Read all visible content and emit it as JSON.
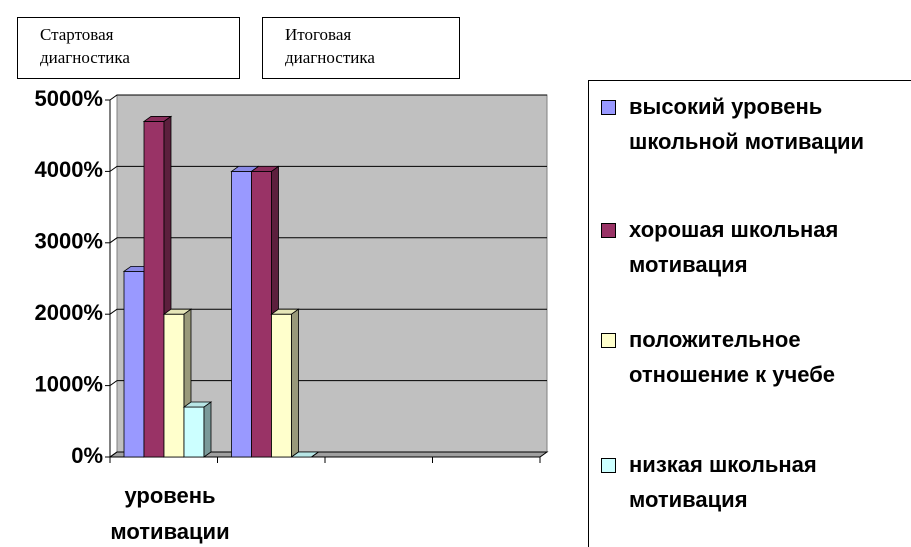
{
  "chart_data": {
    "type": "bar3d",
    "annotations": [
      "Стартовая диагностика",
      "Итоговая диагностика"
    ],
    "categories": [
      "уровень мотивации",
      null,
      null,
      null
    ],
    "series": [
      {
        "name": "высокий уровень школьной мотивации",
        "color": "#9999ff",
        "values": [
          2600,
          4000,
          null,
          null
        ]
      },
      {
        "name": "хорошая школьная мотивация",
        "color": "#993366",
        "values": [
          4700,
          4000,
          null,
          null
        ]
      },
      {
        "name": "положительное отношение к учебе",
        "color": "#ffffcc",
        "values": [
          2000,
          2000,
          null,
          null
        ]
      },
      {
        "name": "низкая школьная мотивация",
        "color": "#ccffff",
        "values": [
          700,
          0,
          null,
          null
        ]
      }
    ],
    "ylim": [
      0,
      5000
    ],
    "yticks": [
      {
        "value": 0,
        "label": "0%"
      },
      {
        "value": 1000,
        "label": "1000%"
      },
      {
        "value": 2000,
        "label": "2000%"
      },
      {
        "value": 3000,
        "label": "3000%"
      },
      {
        "value": 4000,
        "label": "4000%"
      },
      {
        "value": 5000,
        "label": "5000%"
      }
    ],
    "grid": true,
    "wall_color": "#c0c0c0",
    "legend": "right"
  }
}
